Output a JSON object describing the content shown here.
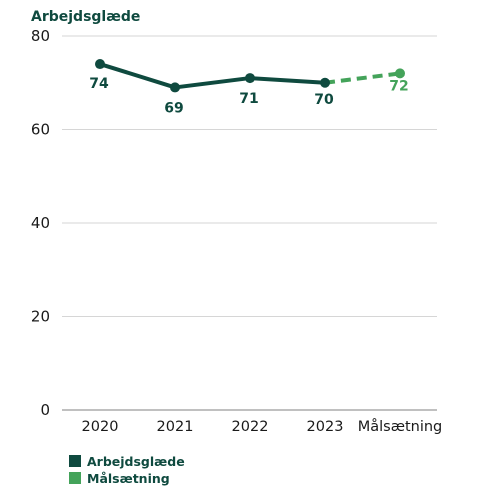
{
  "chart_data": {
    "type": "line",
    "title": "Arbejdsglæde",
    "categories": [
      "2020",
      "2021",
      "2022",
      "2023",
      "Målsætning"
    ],
    "ylim": [
      0,
      80
    ],
    "yticks": [
      0,
      20,
      40,
      60,
      80
    ],
    "grid": true,
    "legend_position": "bottom-left",
    "series": [
      {
        "name": "Arbejdsglæde",
        "color": "#0f4a3f",
        "style": "solid",
        "x": [
          "2020",
          "2021",
          "2022",
          "2023"
        ],
        "values": [
          74,
          69,
          71,
          70
        ],
        "labels": [
          "74",
          "69",
          "71",
          "70"
        ]
      },
      {
        "name": "Målsætning",
        "color": "#44a35a",
        "style": "dashed",
        "x": [
          "2023",
          "Målsætning"
        ],
        "values": [
          70,
          72
        ],
        "labels": [
          "",
          "72"
        ]
      }
    ]
  }
}
